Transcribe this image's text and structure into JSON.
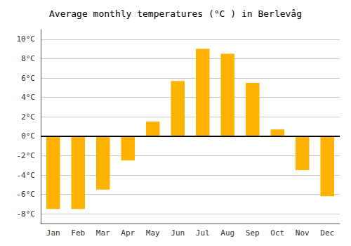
{
  "chart_data": {
    "type": "bar",
    "title": "Average monthly temperatures (°C ) in Berlevåg",
    "categories": [
      "Jan",
      "Feb",
      "Mar",
      "Apr",
      "May",
      "Jun",
      "Jul",
      "Aug",
      "Sep",
      "Oct",
      "Nov",
      "Dec"
    ],
    "values": [
      -7.5,
      -7.5,
      -5.5,
      -2.5,
      1.5,
      5.7,
      9.0,
      8.5,
      5.5,
      0.7,
      -3.5,
      -6.2
    ],
    "color": "#FFB300",
    "ylim": [
      -9,
      11
    ],
    "yticks": [
      {
        "value": -8,
        "label": "-8°C"
      },
      {
        "value": -6,
        "label": "-6°C"
      },
      {
        "value": -4,
        "label": "-4°C"
      },
      {
        "value": -2,
        "label": "-2°C"
      },
      {
        "value": 0,
        "label": "0°C"
      },
      {
        "value": 2,
        "label": "2°C"
      },
      {
        "value": 4,
        "label": "4°C"
      },
      {
        "value": 6,
        "label": "6°C"
      },
      {
        "value": 8,
        "label": "8°C"
      },
      {
        "value": 10,
        "label": "10°C"
      }
    ],
    "grid": true
  }
}
